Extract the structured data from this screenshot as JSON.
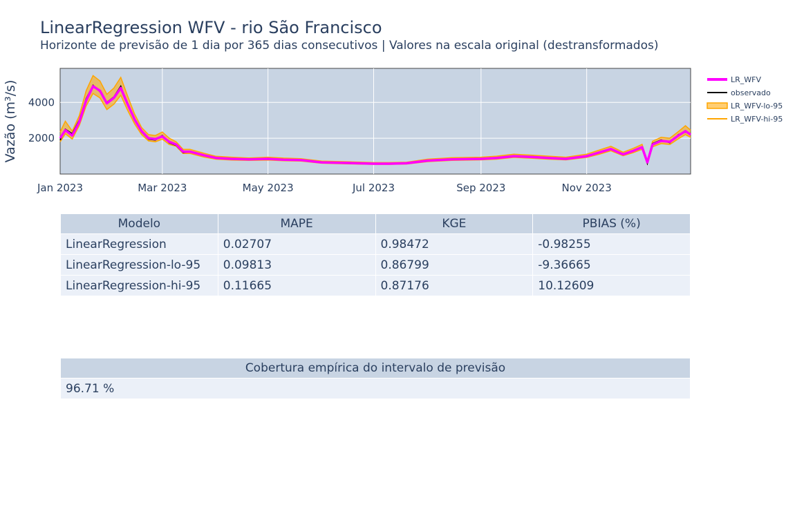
{
  "title": "LinearRegression WFV - rio São Francisco",
  "subtitle": "Horizonte de previsão de 1 dia por 365 dias consecutivos | Valores na escala original (destransformados)",
  "chart_data": {
    "type": "line",
    "ylabel": "Vazão (m³/s)",
    "x_range": [
      "2023-01-01",
      "2023-12-31"
    ],
    "ylim": [
      0,
      5900
    ],
    "y_ticks": [
      2000,
      4000
    ],
    "y_tick_labels": [
      "2000",
      "4000"
    ],
    "x_ticks": [
      "2023-01-01",
      "2023-03-01",
      "2023-05-01",
      "2023-07-01",
      "2023-09-01",
      "2023-11-01"
    ],
    "x_tick_labels": [
      "Jan 2023",
      "Mar 2023",
      "May 2023",
      "Jul 2023",
      "Sep 2023",
      "Nov 2023"
    ],
    "grid": true,
    "legend_position": "top-right",
    "series": [
      {
        "name": "LR_WFV",
        "color": "#ff00ff"
      },
      {
        "name": "observado",
        "color": "#000000"
      },
      {
        "name": "LR_WFV-lo-95",
        "color": "#ffa500"
      },
      {
        "name": "LR_WFV-hi-95",
        "color": "#ffa500"
      }
    ],
    "x": [
      "2023-01-01",
      "2023-01-04",
      "2023-01-08",
      "2023-01-12",
      "2023-01-16",
      "2023-01-20",
      "2023-01-24",
      "2023-01-28",
      "2023-02-01",
      "2023-02-05",
      "2023-02-09",
      "2023-02-13",
      "2023-02-17",
      "2023-02-21",
      "2023-02-25",
      "2023-03-01",
      "2023-03-05",
      "2023-03-09",
      "2023-03-13",
      "2023-03-17",
      "2023-03-21",
      "2023-03-25",
      "2023-04-01",
      "2023-04-10",
      "2023-04-20",
      "2023-05-01",
      "2023-05-10",
      "2023-05-20",
      "2023-06-01",
      "2023-06-15",
      "2023-07-01",
      "2023-07-10",
      "2023-07-20",
      "2023-08-01",
      "2023-08-15",
      "2023-09-01",
      "2023-09-10",
      "2023-09-20",
      "2023-10-01",
      "2023-10-10",
      "2023-10-20",
      "2023-11-01",
      "2023-11-08",
      "2023-11-15",
      "2023-11-22",
      "2023-11-28",
      "2023-12-03",
      "2023-12-06",
      "2023-12-09",
      "2023-12-14",
      "2023-12-19",
      "2023-12-24",
      "2023-12-28",
      "2023-12-31"
    ],
    "observado": [
      1900,
      2500,
      2250,
      3000,
      4200,
      4950,
      4600,
      4000,
      4300,
      4900,
      3850,
      3000,
      2350,
      1950,
      1900,
      2150,
      1750,
      1600,
      1200,
      1250,
      1150,
      1050,
      900,
      850,
      820,
      850,
      800,
      780,
      650,
      620,
      580,
      580,
      600,
      750,
      820,
      850,
      900,
      1000,
      950,
      900,
      850,
      1000,
      1200,
      1400,
      1100,
      1300,
      1500,
      600,
      1700,
      1900,
      1750,
      2200,
      2350,
      2250
    ],
    "lr_wfv": [
      2000,
      2450,
      2150,
      2900,
      4100,
      4900,
      4650,
      3950,
      4250,
      4800,
      3900,
      3050,
      2400,
      2000,
      1950,
      2100,
      1800,
      1650,
      1250,
      1250,
      1150,
      1050,
      900,
      850,
      820,
      850,
      800,
      780,
      650,
      620,
      580,
      580,
      600,
      750,
      820,
      850,
      900,
      1000,
      950,
      900,
      850,
      1000,
      1200,
      1400,
      1100,
      1300,
      1500,
      650,
      1650,
      1850,
      1800,
      2150,
      2400,
      2200
    ],
    "lo_95": [
      1800,
      2250,
      1950,
      2700,
      3800,
      4500,
      4250,
      3600,
      3900,
      4400,
      3550,
      2800,
      2200,
      1850,
      1800,
      1950,
      1650,
      1550,
      1150,
      1150,
      1050,
      950,
      830,
      780,
      760,
      780,
      740,
      720,
      600,
      570,
      540,
      540,
      560,
      690,
      760,
      790,
      830,
      930,
      880,
      830,
      790,
      930,
      1100,
      1300,
      1020,
      1200,
      1380,
      580,
      1520,
      1700,
      1650,
      1980,
      2200,
      2050
    ],
    "hi_95": [
      2350,
      2950,
      2400,
      3250,
      4650,
      5500,
      5200,
      4450,
      4800,
      5400,
      4350,
      3350,
      2600,
      2200,
      2150,
      2350,
      2000,
      1800,
      1380,
      1380,
      1270,
      1160,
      990,
      940,
      900,
      940,
      890,
      860,
      720,
      690,
      640,
      640,
      660,
      830,
      910,
      940,
      1000,
      1110,
      1050,
      1000,
      940,
      1110,
      1330,
      1550,
      1220,
      1440,
      1660,
      720,
      1830,
      2050,
      2000,
      2380,
      2700,
      2450
    ]
  },
  "metrics_table": {
    "headers": [
      "Modelo",
      "MAPE",
      "KGE",
      "PBIAS (%)"
    ],
    "rows": [
      [
        "LinearRegression",
        "0.02707",
        "0.98472",
        "-0.98255"
      ],
      [
        "LinearRegression-lo-95",
        "0.09813",
        "0.86799",
        "-9.36665"
      ],
      [
        "LinearRegression-hi-95",
        "0.11665",
        "0.87176",
        "10.12609"
      ]
    ]
  },
  "coverage_table": {
    "header": "Cobertura empírica do intervalo de previsão",
    "value": "96.71 %"
  }
}
